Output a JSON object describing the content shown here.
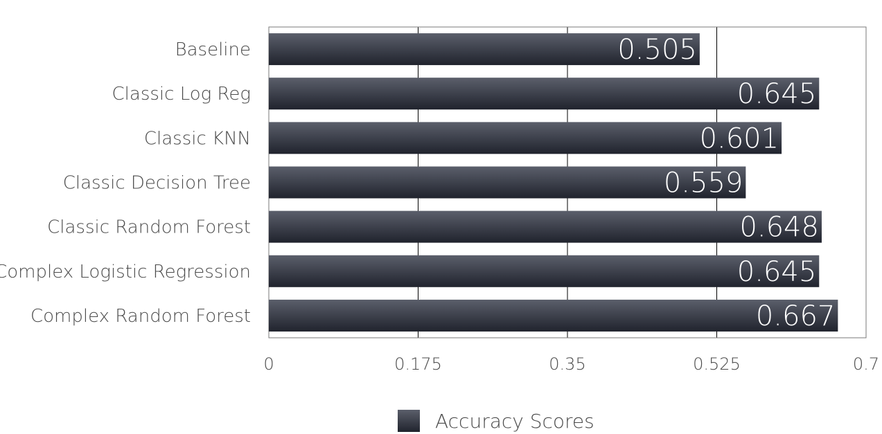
{
  "chart_data": {
    "type": "bar",
    "orientation": "horizontal",
    "categories": [
      "Baseline",
      "Classic Log Reg",
      "Classic KNN",
      "Classic Decision Tree",
      "Classic Random Forest",
      "Complex Logistic Regression",
      "Complex Random Forest"
    ],
    "series": [
      {
        "name": "Accuracy Scores",
        "values": [
          0.505,
          0.645,
          0.601,
          0.559,
          0.648,
          0.645,
          0.667
        ]
      }
    ],
    "value_labels": [
      "0.505",
      "0.645",
      "0.601",
      "0.559",
      "0.648",
      "0.645",
      "0.667"
    ],
    "xlim": [
      0,
      0.7
    ],
    "x_ticks": [
      0,
      0.175,
      0.35,
      0.525,
      0.7
    ],
    "x_tick_labels": [
      "0",
      "0.175",
      "0.35",
      "0.525",
      "0.7"
    ],
    "grid": "vertical",
    "legend_position": "bottom-center",
    "colors": {
      "bar_top": "#5b5f6b",
      "bar_bottom": "#20232d",
      "grid": "#000000",
      "axis": "#7a7a7a"
    }
  }
}
